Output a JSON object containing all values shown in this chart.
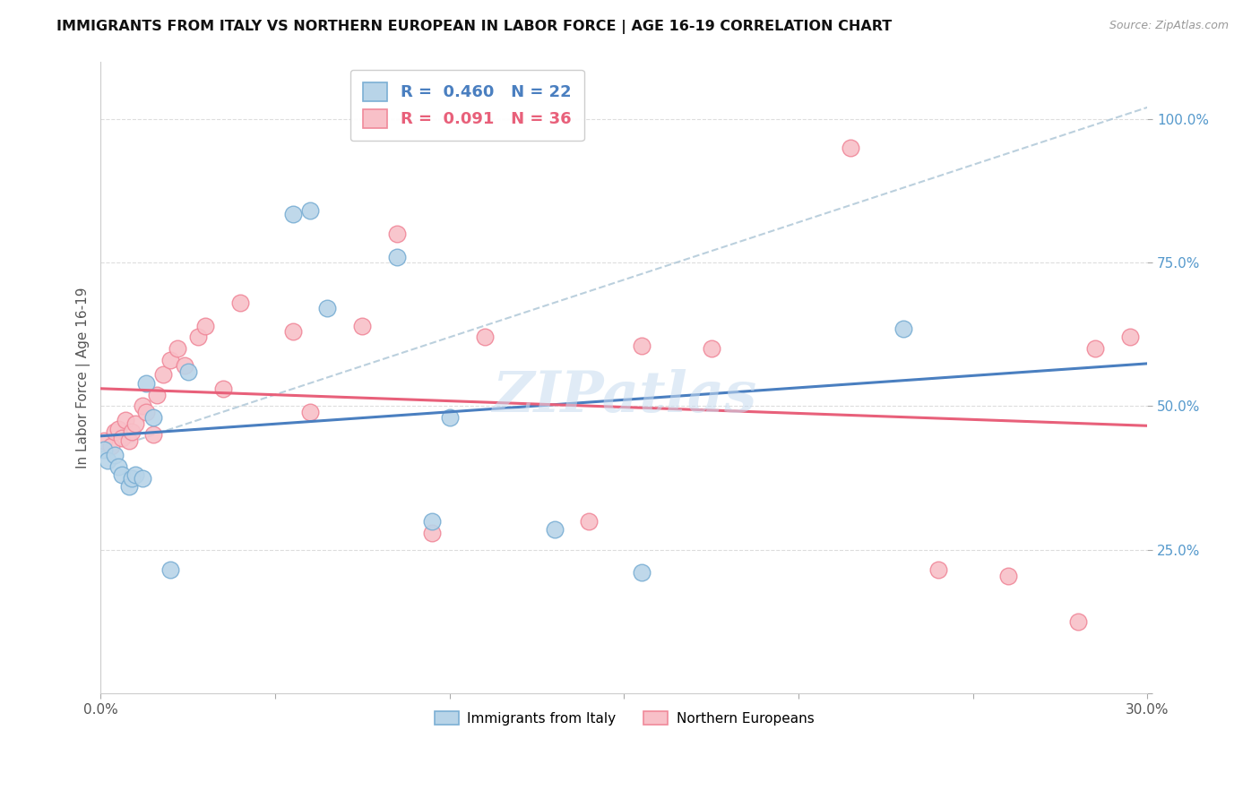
{
  "title": "IMMIGRANTS FROM ITALY VS NORTHERN EUROPEAN IN LABOR FORCE | AGE 16-19 CORRELATION CHART",
  "source": "Source: ZipAtlas.com",
  "ylabel": "In Labor Force | Age 16-19",
  "italy_color": "#7BAFD4",
  "italy_fill": "#B8D4E8",
  "northern_color": "#F0899A",
  "northern_fill": "#F8C0C8",
  "line_italy_color": "#4A7FC0",
  "line_northern_color": "#E8607A",
  "diag_color": "#B0C8D8",
  "legend_R_italy": "0.460",
  "legend_N_italy": "22",
  "legend_R_northern": "0.091",
  "legend_N_northern": "36",
  "xlim": [
    0.0,
    0.3
  ],
  "ylim": [
    0.0,
    1.1
  ],
  "italy_x": [
    0.001,
    0.002,
    0.004,
    0.005,
    0.006,
    0.008,
    0.009,
    0.01,
    0.012,
    0.013,
    0.015,
    0.02,
    0.025,
    0.055,
    0.06,
    0.065,
    0.085,
    0.095,
    0.1,
    0.13,
    0.155,
    0.23
  ],
  "italy_y": [
    0.425,
    0.405,
    0.415,
    0.395,
    0.38,
    0.36,
    0.375,
    0.38,
    0.375,
    0.54,
    0.48,
    0.215,
    0.56,
    0.835,
    0.84,
    0.67,
    0.76,
    0.3,
    0.48,
    0.285,
    0.21,
    0.635
  ],
  "northern_x": [
    0.001,
    0.003,
    0.004,
    0.005,
    0.006,
    0.007,
    0.008,
    0.009,
    0.01,
    0.012,
    0.013,
    0.015,
    0.016,
    0.018,
    0.02,
    0.022,
    0.024,
    0.028,
    0.03,
    0.035,
    0.04,
    0.055,
    0.06,
    0.075,
    0.085,
    0.095,
    0.11,
    0.14,
    0.155,
    0.175,
    0.215,
    0.24,
    0.26,
    0.28,
    0.285,
    0.295
  ],
  "northern_y": [
    0.44,
    0.43,
    0.455,
    0.46,
    0.445,
    0.475,
    0.44,
    0.455,
    0.47,
    0.5,
    0.49,
    0.45,
    0.52,
    0.555,
    0.58,
    0.6,
    0.57,
    0.62,
    0.64,
    0.53,
    0.68,
    0.63,
    0.49,
    0.64,
    0.8,
    0.28,
    0.62,
    0.3,
    0.605,
    0.6,
    0.95,
    0.215,
    0.205,
    0.125,
    0.6,
    0.62
  ]
}
